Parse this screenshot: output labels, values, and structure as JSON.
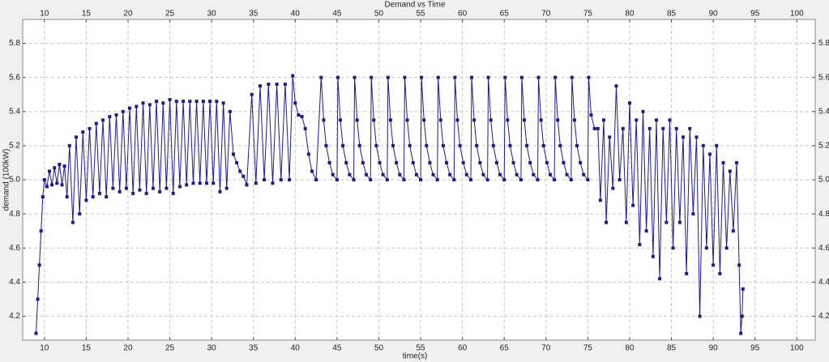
{
  "chart_data": {
    "type": "line",
    "title": "Demand vs Time",
    "x_label": "time(s)",
    "y_label": "demand (100kW)",
    "color": "#1c1c8f",
    "grid": true,
    "xlim": [
      7.4,
      102.2
    ],
    "ylim": [
      4.06,
      5.94
    ],
    "xticks": [
      10,
      15,
      20,
      25,
      30,
      35,
      40,
      45,
      50,
      55,
      60,
      65,
      70,
      75,
      80,
      85,
      90,
      95,
      100
    ],
    "yticks": [
      4.2,
      4.4,
      4.6,
      4.8,
      {
        "value": 5,
        "label": "5.0"
      },
      5.2,
      5.4,
      5.6,
      5.8
    ],
    "x": [
      9.0,
      9.2,
      9.4,
      9.6,
      9.8,
      10.0,
      10.3,
      10.6,
      10.9,
      11.2,
      11.5,
      11.8,
      12.1,
      12.4,
      12.7,
      13.0,
      13.4,
      13.8,
      14.2,
      14.6,
      15.0,
      15.4,
      15.8,
      16.2,
      16.6,
      17.0,
      17.4,
      17.8,
      18.2,
      18.6,
      19.0,
      19.4,
      19.8,
      20.2,
      20.6,
      21.0,
      21.4,
      21.8,
      22.2,
      22.6,
      23.0,
      23.4,
      23.8,
      24.2,
      24.6,
      25.0,
      25.4,
      25.8,
      26.2,
      26.6,
      27.0,
      27.4,
      27.8,
      28.2,
      28.6,
      29.0,
      29.4,
      29.8,
      30.2,
      30.6,
      31.0,
      31.4,
      31.8,
      32.2,
      32.6,
      33.0,
      33.4,
      33.8,
      34.2,
      34.8,
      35.3,
      35.8,
      36.3,
      36.8,
      37.3,
      37.8,
      38.3,
      38.8,
      39.3,
      39.7,
      40.0,
      40.4,
      40.8,
      41.2,
      41.6,
      42.0,
      42.5,
      43.1,
      43.4,
      43.7,
      44.1,
      44.5,
      45.0,
      45.1,
      45.4,
      45.7,
      46.1,
      46.5,
      47.0,
      47.1,
      47.4,
      47.7,
      48.1,
      48.5,
      49.0,
      49.1,
      49.4,
      49.7,
      50.1,
      50.5,
      51.0,
      51.1,
      51.4,
      51.7,
      52.1,
      52.5,
      53.0,
      53.1,
      53.4,
      53.7,
      54.1,
      54.5,
      55.0,
      55.1,
      55.4,
      55.7,
      56.1,
      56.5,
      57.0,
      57.1,
      57.4,
      57.7,
      58.1,
      58.5,
      59.0,
      59.1,
      59.4,
      59.7,
      60.1,
      60.5,
      61.0,
      61.1,
      61.4,
      61.7,
      62.1,
      62.5,
      63.0,
      63.1,
      63.4,
      63.7,
      64.1,
      64.5,
      65.0,
      65.1,
      65.4,
      65.7,
      66.1,
      66.5,
      67.0,
      67.1,
      67.4,
      67.7,
      68.1,
      68.5,
      69.0,
      69.1,
      69.4,
      69.7,
      70.1,
      70.5,
      71.0,
      71.1,
      71.4,
      71.7,
      72.1,
      72.5,
      73.0,
      73.1,
      73.4,
      73.7,
      74.1,
      74.5,
      75.0,
      75.1,
      75.4,
      75.8,
      76.2,
      76.5,
      76.9,
      77.2,
      77.6,
      78.0,
      78.4,
      78.8,
      79.2,
      79.6,
      80.0,
      80.4,
      80.8,
      81.2,
      81.6,
      82.0,
      82.4,
      82.8,
      83.2,
      83.6,
      84.0,
      84.4,
      84.8,
      85.2,
      85.6,
      86.0,
      86.4,
      86.8,
      87.2,
      87.6,
      88.0,
      88.4,
      88.8,
      89.2,
      89.6,
      90.0,
      90.4,
      90.8,
      91.2,
      91.6,
      92.0,
      92.4,
      92.8,
      93.1,
      93.3,
      93.45,
      93.55
    ],
    "values": [
      4.1,
      4.3,
      4.5,
      4.7,
      4.9,
      5.0,
      4.96,
      5.05,
      4.97,
      5.07,
      4.98,
      5.09,
      4.97,
      5.08,
      4.9,
      5.2,
      4.75,
      5.25,
      4.8,
      5.28,
      4.88,
      5.3,
      4.9,
      5.33,
      4.92,
      5.35,
      4.9,
      5.37,
      4.95,
      5.38,
      4.93,
      5.4,
      4.95,
      5.42,
      4.92,
      5.43,
      4.94,
      5.45,
      4.92,
      5.44,
      4.95,
      5.46,
      4.93,
      5.45,
      4.95,
      5.47,
      4.92,
      5.46,
      4.96,
      5.46,
      4.97,
      5.46,
      4.98,
      5.46,
      4.98,
      5.46,
      4.98,
      5.46,
      4.98,
      5.46,
      4.93,
      5.45,
      4.95,
      5.4,
      5.15,
      5.1,
      5.05,
      5.02,
      4.97,
      5.5,
      4.98,
      5.55,
      5.0,
      5.56,
      4.98,
      5.56,
      5.0,
      5.56,
      5.0,
      5.61,
      5.45,
      5.38,
      5.37,
      5.3,
      5.15,
      5.05,
      5.0,
      5.6,
      5.35,
      5.2,
      5.1,
      5.03,
      5.0,
      5.6,
      5.35,
      5.2,
      5.1,
      5.03,
      5.0,
      5.6,
      5.35,
      5.2,
      5.1,
      5.03,
      5.0,
      5.6,
      5.35,
      5.2,
      5.1,
      5.03,
      5.0,
      5.6,
      5.35,
      5.2,
      5.1,
      5.03,
      5.0,
      5.6,
      5.35,
      5.2,
      5.1,
      5.03,
      5.0,
      5.6,
      5.35,
      5.2,
      5.1,
      5.03,
      5.0,
      5.6,
      5.35,
      5.2,
      5.1,
      5.03,
      5.0,
      5.6,
      5.35,
      5.2,
      5.1,
      5.03,
      5.0,
      5.6,
      5.35,
      5.2,
      5.1,
      5.03,
      5.0,
      5.6,
      5.35,
      5.2,
      5.1,
      5.03,
      5.0,
      5.6,
      5.35,
      5.2,
      5.1,
      5.03,
      5.0,
      5.6,
      5.35,
      5.2,
      5.1,
      5.03,
      5.0,
      5.6,
      5.35,
      5.2,
      5.1,
      5.03,
      5.0,
      5.6,
      5.35,
      5.2,
      5.1,
      5.03,
      5.0,
      5.6,
      5.35,
      5.2,
      5.1,
      5.03,
      5.0,
      5.6,
      5.38,
      5.3,
      5.3,
      4.88,
      5.35,
      4.75,
      5.25,
      4.95,
      5.55,
      5.0,
      5.3,
      4.75,
      5.45,
      4.85,
      5.35,
      4.62,
      5.4,
      4.7,
      5.3,
      4.55,
      5.35,
      4.42,
      5.3,
      4.75,
      5.35,
      4.6,
      5.3,
      4.75,
      5.25,
      4.45,
      5.3,
      4.8,
      5.25,
      4.2,
      5.2,
      4.6,
      5.15,
      4.5,
      5.2,
      4.45,
      5.1,
      4.6,
      5.05,
      4.7,
      5.1,
      4.5,
      4.1,
      4.2,
      4.36
    ]
  }
}
